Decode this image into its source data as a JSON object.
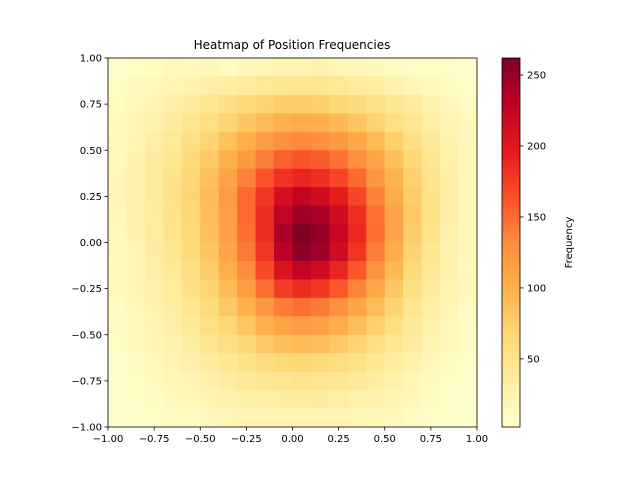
{
  "chart_data": {
    "type": "heatmap",
    "title": "Heatmap of Position Frequencies",
    "xlabel": "",
    "ylabel": "",
    "xlim": [
      -1.0,
      1.0
    ],
    "ylim": [
      -1.0,
      1.0
    ],
    "x_ticks": [
      "−1.00",
      "−0.75",
      "−0.50",
      "−0.25",
      "0.00",
      "0.25",
      "0.50",
      "0.75",
      "1.00"
    ],
    "y_ticks": [
      "−1.00",
      "−0.75",
      "−0.50",
      "−0.25",
      "0.00",
      "0.25",
      "0.50",
      "0.75",
      "1.00"
    ],
    "grid": false,
    "colormap": "YlOrRd",
    "colorbar": {
      "label": "Frequency",
      "range": [
        2,
        262
      ],
      "ticks": [
        "50",
        "100",
        "150",
        "200",
        "250"
      ],
      "tick_values": [
        50,
        100,
        150,
        200,
        250
      ]
    },
    "bins": 20,
    "values": [
      [
        5,
        8,
        10,
        14,
        12,
        15,
        10,
        14,
        18,
        21,
        22,
        24,
        18,
        16,
        12,
        9,
        8,
        7,
        6,
        5
      ],
      [
        8,
        12,
        16,
        20,
        24,
        30,
        34,
        38,
        42,
        46,
        48,
        46,
        42,
        38,
        34,
        26,
        20,
        14,
        10,
        6
      ],
      [
        10,
        16,
        22,
        30,
        36,
        45,
        55,
        62,
        70,
        76,
        78,
        74,
        68,
        62,
        55,
        44,
        36,
        26,
        16,
        10
      ],
      [
        12,
        18,
        26,
        36,
        45,
        58,
        70,
        82,
        92,
        100,
        104,
        100,
        94,
        84,
        72,
        58,
        46,
        32,
        20,
        12
      ],
      [
        14,
        22,
        32,
        42,
        56,
        70,
        86,
        102,
        118,
        128,
        134,
        130,
        120,
        108,
        92,
        74,
        58,
        40,
        24,
        14
      ],
      [
        15,
        24,
        36,
        48,
        62,
        80,
        100,
        120,
        140,
        155,
        162,
        158,
        146,
        130,
        110,
        88,
        68,
        46,
        28,
        16
      ],
      [
        16,
        26,
        38,
        52,
        68,
        88,
        112,
        138,
        162,
        182,
        190,
        184,
        170,
        150,
        124,
        98,
        74,
        50,
        30,
        16
      ],
      [
        16,
        26,
        38,
        52,
        70,
        92,
        118,
        150,
        180,
        210,
        224,
        214,
        196,
        170,
        138,
        106,
        78,
        52,
        30,
        16
      ],
      [
        15,
        25,
        36,
        50,
        68,
        90,
        116,
        150,
        186,
        225,
        245,
        238,
        215,
        184,
        146,
        110,
        80,
        52,
        30,
        16
      ],
      [
        15,
        24,
        35,
        49,
        66,
        88,
        114,
        148,
        186,
        240,
        262,
        250,
        222,
        188,
        148,
        110,
        78,
        50,
        28,
        15
      ],
      [
        14,
        22,
        33,
        46,
        62,
        84,
        110,
        142,
        180,
        230,
        255,
        244,
        215,
        180,
        140,
        104,
        72,
        46,
        26,
        14
      ],
      [
        13,
        20,
        30,
        42,
        58,
        78,
        102,
        132,
        168,
        205,
        225,
        215,
        190,
        160,
        126,
        94,
        64,
        42,
        24,
        13
      ],
      [
        12,
        18,
        27,
        38,
        52,
        70,
        92,
        118,
        148,
        175,
        186,
        178,
        160,
        136,
        108,
        82,
        56,
        38,
        22,
        12
      ],
      [
        10,
        16,
        24,
        34,
        46,
        62,
        80,
        100,
        122,
        140,
        148,
        142,
        128,
        110,
        90,
        70,
        48,
        32,
        18,
        10
      ],
      [
        9,
        14,
        21,
        30,
        40,
        54,
        68,
        84,
        100,
        112,
        118,
        114,
        104,
        90,
        74,
        58,
        40,
        27,
        16,
        9
      ],
      [
        8,
        12,
        18,
        26,
        34,
        45,
        56,
        68,
        80,
        88,
        92,
        88,
        80,
        70,
        58,
        46,
        33,
        22,
        13,
        8
      ],
      [
        6,
        10,
        15,
        21,
        28,
        36,
        44,
        52,
        60,
        66,
        68,
        65,
        60,
        53,
        44,
        35,
        26,
        17,
        10,
        6
      ],
      [
        5,
        8,
        12,
        17,
        22,
        28,
        34,
        40,
        45,
        48,
        50,
        48,
        44,
        39,
        33,
        26,
        19,
        13,
        8,
        5
      ],
      [
        4,
        6,
        9,
        13,
        17,
        21,
        25,
        29,
        32,
        34,
        35,
        34,
        31,
        28,
        24,
        19,
        14,
        10,
        6,
        4
      ],
      [
        2,
        4,
        6,
        9,
        11,
        14,
        16,
        18,
        20,
        21,
        22,
        21,
        19,
        17,
        15,
        12,
        9,
        6,
        4,
        2
      ]
    ]
  }
}
